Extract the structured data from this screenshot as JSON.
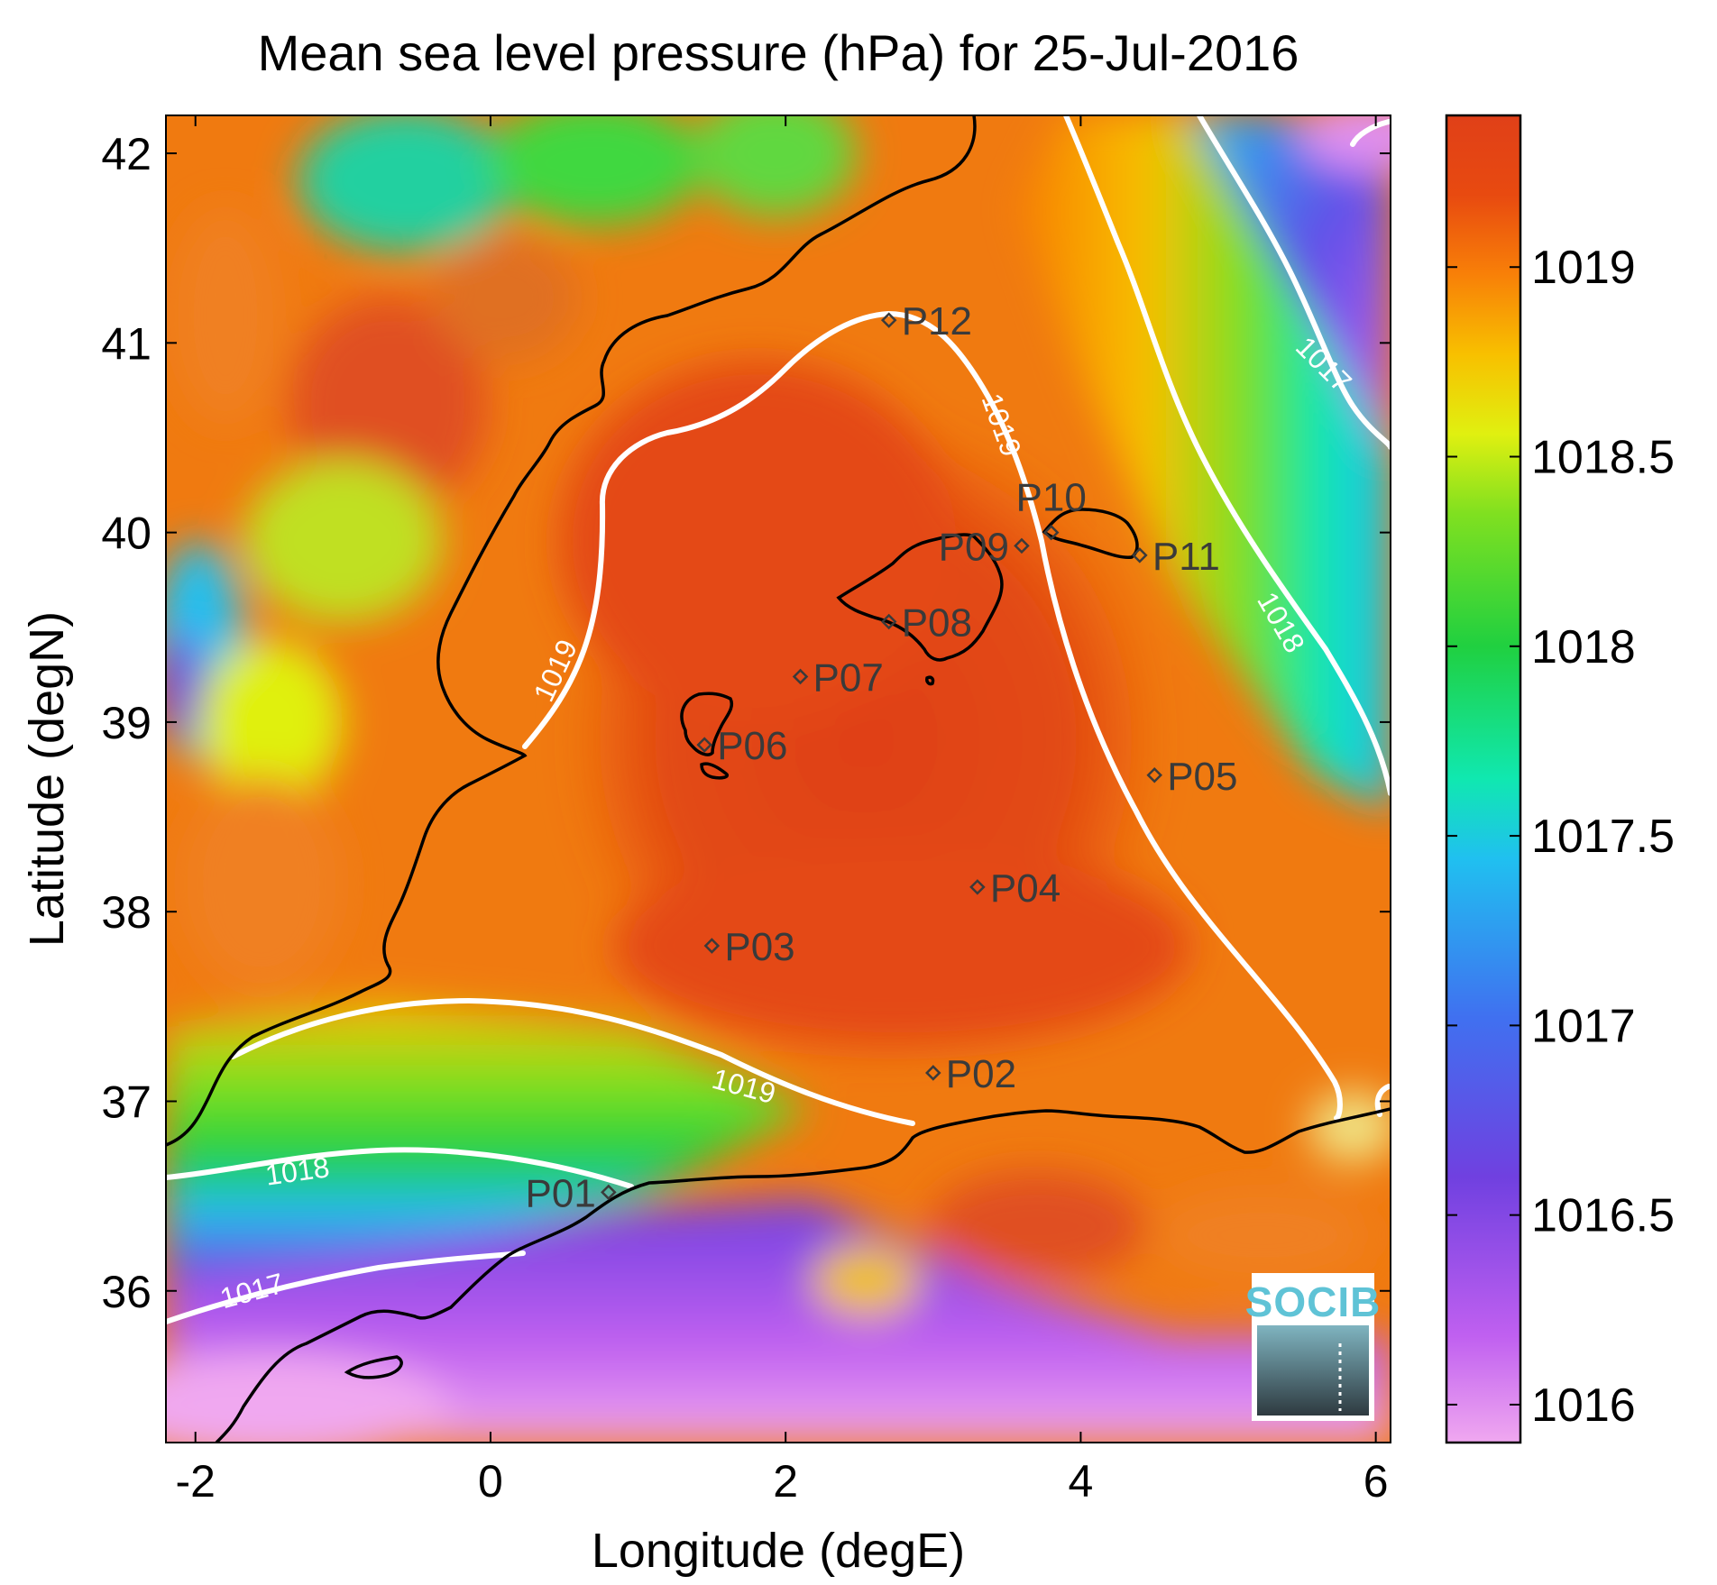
{
  "title": "Mean sea level pressure (hPa) for 25-Jul-2016",
  "x_axis": {
    "label": "Longitude (degE)",
    "range": [
      -2.2,
      6.1
    ],
    "ticks": [
      -2,
      0,
      2,
      4,
      6
    ]
  },
  "y_axis": {
    "label": "Latitude (degN)",
    "range": [
      35.2,
      42.2
    ],
    "ticks": [
      36,
      37,
      38,
      39,
      40,
      41,
      42
    ]
  },
  "colorbar": {
    "range": [
      1015.9,
      1019.4
    ],
    "ticks": [
      1016,
      1016.5,
      1017,
      1017.5,
      1018,
      1018.5,
      1019
    ],
    "colors": [
      "#f0a8f0",
      "#c060f0",
      "#7040e0",
      "#4070f0",
      "#20c0f0",
      "#10e8b0",
      "#20d040",
      "#80e020",
      "#e0f010",
      "#f8c000",
      "#f88008",
      "#e84a10",
      "#e04018"
    ]
  },
  "stations": [
    {
      "id": "P01",
      "lon": 0.8,
      "lat": 36.52
    },
    {
      "id": "P02",
      "lon": 3.0,
      "lat": 37.15
    },
    {
      "id": "P03",
      "lon": 1.5,
      "lat": 37.82
    },
    {
      "id": "P04",
      "lon": 3.3,
      "lat": 38.13
    },
    {
      "id": "P05",
      "lon": 4.5,
      "lat": 38.72
    },
    {
      "id": "P06",
      "lon": 1.45,
      "lat": 38.88
    },
    {
      "id": "P07",
      "lon": 2.1,
      "lat": 39.24
    },
    {
      "id": "P08",
      "lon": 2.7,
      "lat": 39.53
    },
    {
      "id": "P09",
      "lon": 3.6,
      "lat": 39.93
    },
    {
      "id": "P10",
      "lon": 3.8,
      "lat": 40.0
    },
    {
      "id": "P11",
      "lon": 4.4,
      "lat": 39.88
    },
    {
      "id": "P12",
      "lon": 2.7,
      "lat": 41.12
    }
  ],
  "contour_labels": [
    {
      "text": "1019",
      "lon": 3.4,
      "lat": 40.55
    },
    {
      "text": "1019",
      "lon": 0.5,
      "lat": 39.25
    },
    {
      "text": "1019",
      "lon": 1.7,
      "lat": 37.03
    },
    {
      "text": "1018",
      "lon": -1.3,
      "lat": 36.58
    },
    {
      "text": "1017",
      "lon": -1.6,
      "lat": 35.95
    },
    {
      "text": "1018",
      "lon": 5.3,
      "lat": 39.5
    },
    {
      "text": "1017",
      "lon": 5.6,
      "lat": 40.85
    }
  ],
  "logo": {
    "text": "SOCIB"
  }
}
